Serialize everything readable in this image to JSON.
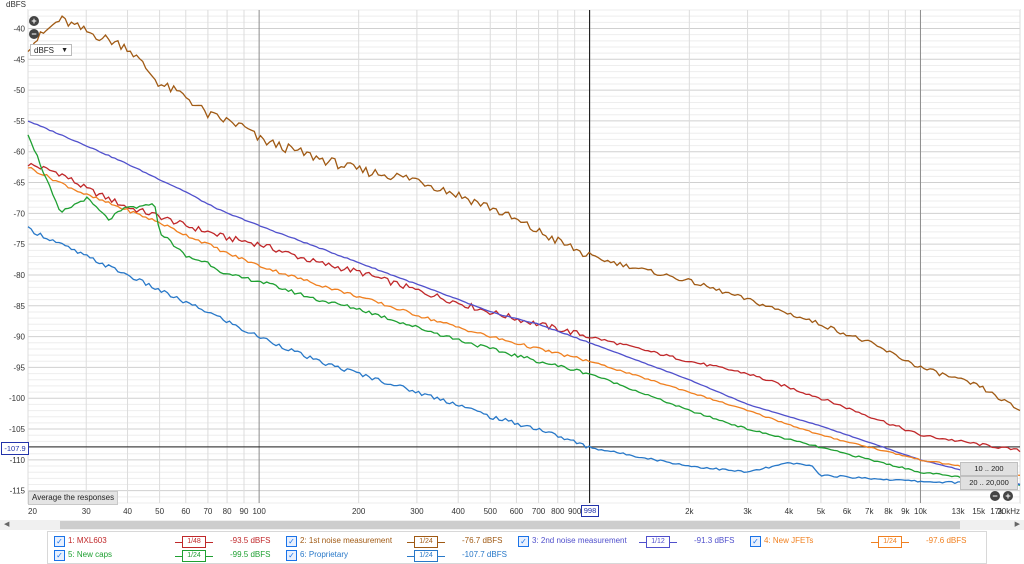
{
  "chart_data": {
    "type": "line",
    "ylabel": "dBFS",
    "xscale": "log",
    "xlim": [
      20,
      20000
    ],
    "ylim": [
      -117,
      -37
    ],
    "x_ticks": [
      {
        "v": 20,
        "label": "20"
      },
      {
        "v": 30,
        "label": "30"
      },
      {
        "v": 40,
        "label": "40"
      },
      {
        "v": 50,
        "label": "50"
      },
      {
        "v": 60,
        "label": "60"
      },
      {
        "v": 70,
        "label": "70"
      },
      {
        "v": 80,
        "label": "80"
      },
      {
        "v": 90,
        "label": "90"
      },
      {
        "v": 100,
        "label": "100"
      },
      {
        "v": 200,
        "label": "200"
      },
      {
        "v": 300,
        "label": "300"
      },
      {
        "v": 400,
        "label": "400"
      },
      {
        "v": 500,
        "label": "500"
      },
      {
        "v": 600,
        "label": "600"
      },
      {
        "v": 700,
        "label": "700"
      },
      {
        "v": 800,
        "label": "800"
      },
      {
        "v": 900,
        "label": "900"
      },
      {
        "v": 2000,
        "label": "2k"
      },
      {
        "v": 3000,
        "label": "3k"
      },
      {
        "v": 4000,
        "label": "4k"
      },
      {
        "v": 5000,
        "label": "5k"
      },
      {
        "v": 6000,
        "label": "6k"
      },
      {
        "v": 7000,
        "label": "7k"
      },
      {
        "v": 8000,
        "label": "8k"
      },
      {
        "v": 9000,
        "label": "9k"
      },
      {
        "v": 10000,
        "label": "10k"
      },
      {
        "v": 13000,
        "label": "13k"
      },
      {
        "v": 15000,
        "label": "15k"
      },
      {
        "v": 17000,
        "label": "17k"
      },
      {
        "v": 20000,
        "label": "20kHz"
      }
    ],
    "y_ticks": [
      -40,
      -45,
      -50,
      -55,
      -60,
      -65,
      -70,
      -75,
      -80,
      -85,
      -90,
      -95,
      -100,
      -105,
      -110,
      -115
    ],
    "grid": true,
    "cursor": {
      "x": 998,
      "y": -107.9,
      "x_label": "998",
      "y_label": "-107.9"
    },
    "series": [
      {
        "name": "1: MXL603",
        "color": "#c0282a",
        "x": [
          20,
          25,
          30,
          40,
          50,
          60,
          70,
          80,
          90,
          100,
          150,
          200,
          300,
          400,
          500,
          700,
          1000,
          2000,
          3000,
          5000,
          10000,
          20000
        ],
        "y": [
          -62,
          -63.5,
          -66,
          -69,
          -70.5,
          -72,
          -73,
          -74,
          -74.5,
          -75,
          -78,
          -79.5,
          -82.5,
          -84.5,
          -86,
          -88,
          -90,
          -94,
          -96,
          -100,
          -106,
          -108.5
        ]
      },
      {
        "name": "2: 1st noise measurement",
        "color": "#a05a14",
        "x": [
          20,
          25,
          30,
          40,
          50,
          60,
          70,
          80,
          90,
          100,
          150,
          200,
          300,
          400,
          500,
          700,
          1000,
          2000,
          3000,
          5000,
          7000,
          10000,
          15000,
          20000
        ],
        "y": [
          -43,
          -38.5,
          -40.5,
          -43,
          -49,
          -51,
          -54,
          -55,
          -56,
          -58,
          -61,
          -63,
          -64.5,
          -67,
          -69,
          -73,
          -77,
          -81,
          -84,
          -88,
          -91,
          -95,
          -98,
          -102
        ]
      },
      {
        "name": "3: 2nd noise measurement",
        "color": "#5050cc",
        "x": [
          20,
          30,
          40,
          50,
          60,
          70,
          80,
          90,
          100,
          150,
          200,
          300,
          400,
          500,
          700,
          1000,
          2000,
          3000,
          5000,
          10000,
          20000
        ],
        "y": [
          -55,
          -59,
          -62,
          -64.5,
          -66.5,
          -68.5,
          -70,
          -71,
          -72,
          -75.5,
          -78,
          -81.5,
          -84,
          -86,
          -88,
          -91,
          -97,
          -101,
          -104.5,
          -110,
          -114
        ]
      },
      {
        "name": "4: New JFETs",
        "color": "#f08020",
        "x": [
          20,
          25,
          30,
          40,
          50,
          60,
          70,
          80,
          90,
          100,
          150,
          200,
          300,
          400,
          500,
          700,
          1000,
          2000,
          3000,
          5000,
          10000,
          20000
        ],
        "y": [
          -62.5,
          -65,
          -67,
          -69.5,
          -71.5,
          -73.5,
          -75,
          -76.5,
          -77.5,
          -78.5,
          -81.5,
          -83.5,
          -86.5,
          -88.5,
          -90,
          -92,
          -94,
          -99,
          -102,
          -106,
          -110,
          -112.5
        ]
      },
      {
        "name": "5: New caps",
        "color": "#1fa032",
        "x": [
          20,
          25,
          30,
          35,
          40,
          45,
          48,
          50,
          55,
          60,
          70,
          80,
          90,
          100,
          150,
          200,
          300,
          400,
          500,
          700,
          1000,
          2000,
          3000,
          5000,
          10000,
          20000
        ],
        "y": [
          -57,
          -70,
          -67.5,
          -71,
          -69,
          -69,
          -68,
          -73,
          -75,
          -77,
          -78,
          -80,
          -80.5,
          -81,
          -84,
          -85.5,
          -88.5,
          -90.5,
          -92,
          -94,
          -96,
          -102,
          -105,
          -108,
          -112,
          -114
        ]
      },
      {
        "name": "6: Proprietary",
        "color": "#2878c8",
        "x": [
          20,
          30,
          40,
          50,
          60,
          70,
          80,
          90,
          100,
          150,
          200,
          300,
          400,
          500,
          700,
          1000,
          2000,
          3000,
          4000,
          4700,
          5000,
          7000,
          10000,
          20000
        ],
        "y": [
          -72.5,
          -77,
          -80,
          -82.5,
          -84.5,
          -86,
          -87.5,
          -89,
          -90,
          -94,
          -96,
          -99,
          -101,
          -103,
          -105,
          -108,
          -111,
          -112,
          -110.5,
          -111,
          -112.5,
          -113,
          -113.5,
          -114
        ]
      }
    ]
  },
  "ui": {
    "y_unit_label": "dBFS",
    "dropdown_value": "dBFS",
    "avg_button": "Average the responses",
    "range_btn_1": "10 .. 200",
    "range_btn_2": "20 .. 20,000",
    "zoom_in": "+",
    "zoom_out": "−"
  },
  "legend": [
    {
      "name": "1: MXL603",
      "smoothing": "1/48",
      "value": "-93.5 dBFS",
      "color": "#c0282a"
    },
    {
      "name": "2: 1st noise measurement",
      "smoothing": "1/24",
      "value": "-76.7 dBFS",
      "color": "#a05a14"
    },
    {
      "name": "3: 2nd noise measurement",
      "smoothing": "1/12",
      "value": "-91.3 dBFS",
      "color": "#5050cc"
    },
    {
      "name": "4: New JFETs",
      "smoothing": "1/24",
      "value": "-97.6 dBFS",
      "color": "#f08020"
    },
    {
      "name": "5: New caps",
      "smoothing": "1/24",
      "value": "-99.5 dBFS",
      "color": "#1fa032"
    },
    {
      "name": "6: Proprietary",
      "smoothing": "1/24",
      "value": "-107.7 dBFS",
      "color": "#2878c8"
    }
  ]
}
